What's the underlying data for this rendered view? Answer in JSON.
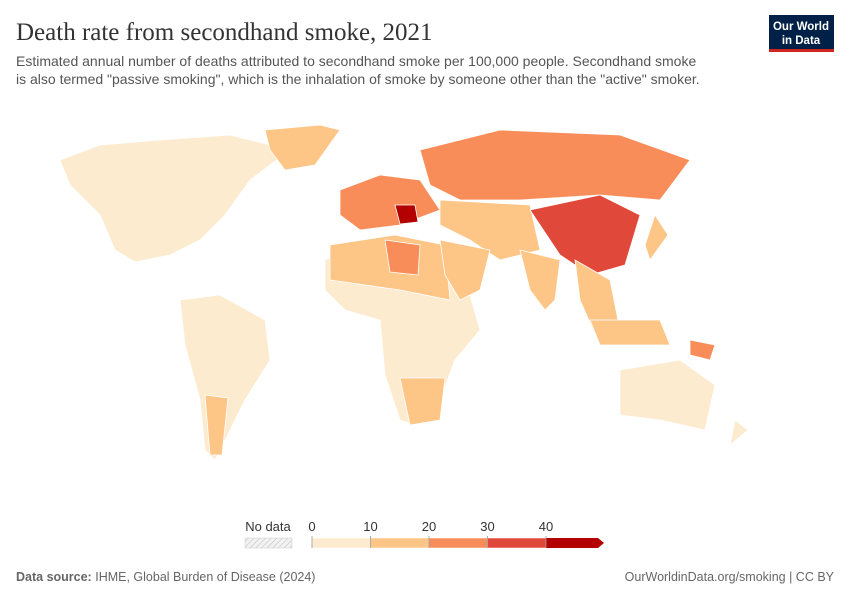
{
  "header": {
    "title": "Death rate from secondhand smoke, 2021",
    "subtitle": [
      "Estimated annual number of deaths attributed to secondhand smoke per 100,000 people. Secondhand smoke",
      "is also termed \"passive smoking\", which is the inhalation of smoke by someone other than the \"active\" smoker."
    ],
    "logo": [
      "Our World",
      "in Data"
    ]
  },
  "legend": {
    "no_data": "No data",
    "ticks": [
      0,
      10,
      20,
      30,
      40
    ],
    "colors": [
      "#fdebd0",
      "#fdc586",
      "#f98d5a",
      "#e0483a",
      "#b30000"
    ]
  },
  "footer": {
    "source_label": "Data source:",
    "source": "IHME, Global Burden of Disease (2024)",
    "link": "OurWorldinData.org/smoking | CC BY"
  }
}
